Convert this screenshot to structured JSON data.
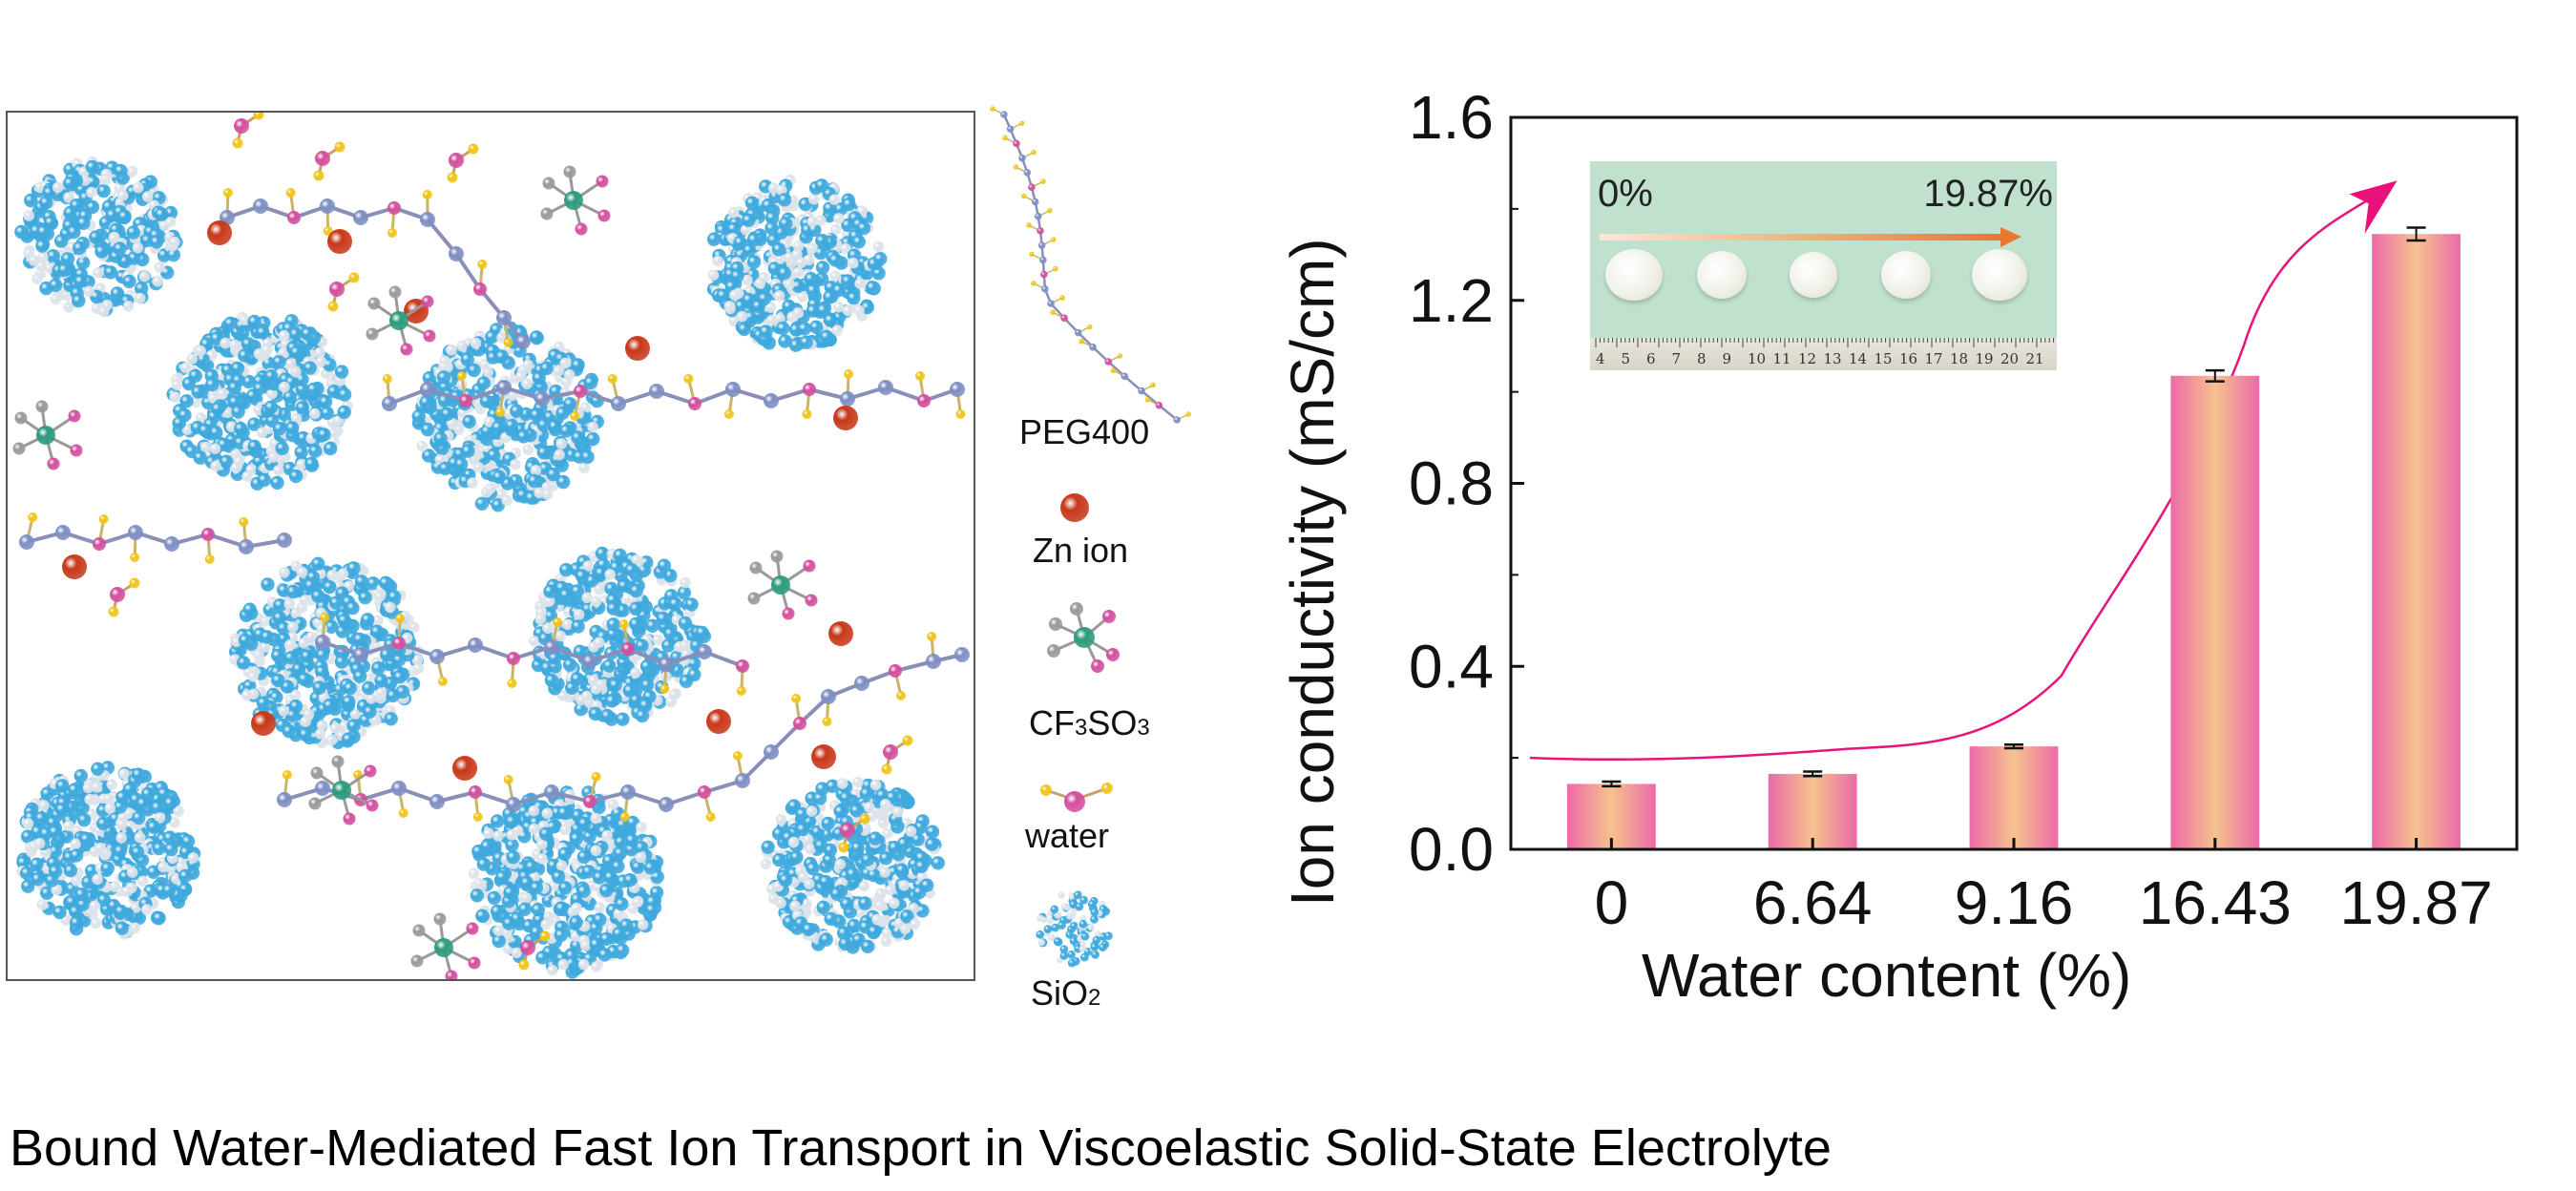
{
  "caption": "Bound Water-Mediated Fast Ion Transport in Viscoelastic Solid-State Electrolyte",
  "legend": {
    "peg": "PEG400",
    "zn": "Zn ion",
    "cf3so3_parts": [
      "CF",
      "3",
      "SO",
      "3"
    ],
    "water": "water",
    "sio2_parts": [
      "SiO",
      "2"
    ]
  },
  "colors": {
    "sio2_blue": "#3fa9dd",
    "sio2_white": "#dde3ea",
    "carbon": "#7f8fc4",
    "oxygen": "#d2509e",
    "hydrogen": "#f0c419",
    "zinc": "#c8381a",
    "sulfur": "#2e9a7e",
    "bar_center": "#f6c28f",
    "bar_edge": "#ec6aa8",
    "arrow": "#e8137a",
    "inset_bg": "#bfe1cd"
  },
  "inset": {
    "left_label": "0%",
    "right_label": "19.87%",
    "ruler_numbers": [
      "4",
      "5",
      "6",
      "7",
      "8",
      "9",
      "10",
      "11",
      "12",
      "13",
      "14",
      "15",
      "16",
      "17",
      "18",
      "19",
      "20",
      "21"
    ]
  },
  "chart_data": {
    "type": "bar",
    "categories": [
      "0",
      "6.64",
      "9.16",
      "16.43",
      "19.87"
    ],
    "values": [
      0.143,
      0.165,
      0.225,
      1.035,
      1.345
    ],
    "errors": [
      0.005,
      0.005,
      0.004,
      0.012,
      0.014
    ],
    "xlabel": "Water content (%)",
    "ylabel": "Ion conductivity (mS/cm)",
    "ylim": [
      0,
      1.6
    ],
    "yticks": [
      "0.0",
      "0.4",
      "0.8",
      "1.2",
      "1.6"
    ],
    "trend_curve": true,
    "grid": false
  }
}
